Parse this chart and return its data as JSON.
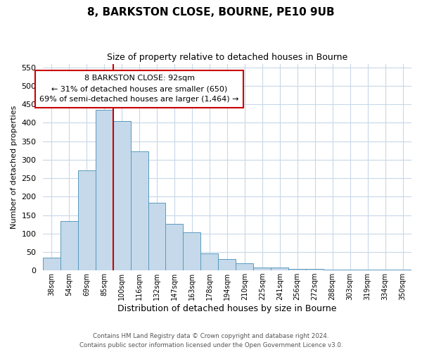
{
  "title": "8, BARKSTON CLOSE, BOURNE, PE10 9UB",
  "subtitle": "Size of property relative to detached houses in Bourne",
  "xlabel": "Distribution of detached houses by size in Bourne",
  "ylabel": "Number of detached properties",
  "bar_color": "#c5d9ea",
  "bar_edge_color": "#5a9abf",
  "categories": [
    "38sqm",
    "54sqm",
    "69sqm",
    "85sqm",
    "100sqm",
    "116sqm",
    "132sqm",
    "147sqm",
    "163sqm",
    "178sqm",
    "194sqm",
    "210sqm",
    "225sqm",
    "241sqm",
    "256sqm",
    "272sqm",
    "288sqm",
    "303sqm",
    "319sqm",
    "334sqm",
    "350sqm"
  ],
  "values": [
    35,
    133,
    272,
    435,
    405,
    322,
    183,
    127,
    103,
    46,
    30,
    20,
    8,
    8,
    5,
    5,
    3,
    3,
    2,
    2,
    3
  ],
  "vline_color": "#cc0000",
  "annotation_line1": "8 BARKSTON CLOSE: 92sqm",
  "annotation_line2": "← 31% of detached houses are smaller (650)",
  "annotation_line3": "69% of semi-detached houses are larger (1,464) →",
  "ylim": [
    0,
    560
  ],
  "yticks": [
    0,
    50,
    100,
    150,
    200,
    250,
    300,
    350,
    400,
    450,
    500,
    550
  ],
  "footer_line1": "Contains HM Land Registry data © Crown copyright and database right 2024.",
  "footer_line2": "Contains public sector information licensed under the Open Government Licence v3.0.",
  "background_color": "#ffffff",
  "grid_color": "#c8d8e8"
}
